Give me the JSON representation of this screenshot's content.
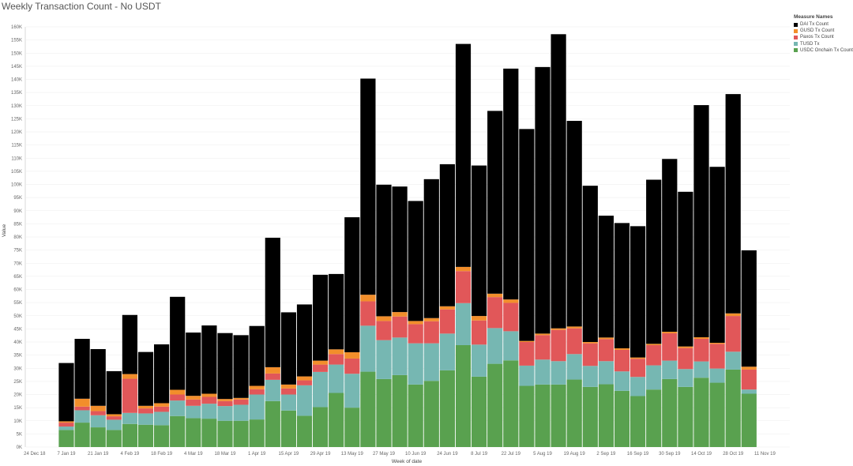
{
  "chart_data": {
    "type": "bar",
    "stacked": true,
    "title": "Weekly Transaction Count - No USDT",
    "xlabel": "Week of date",
    "ylabel": "Value",
    "ylim": [
      0,
      160000
    ],
    "y_ticks": [
      0,
      5000,
      10000,
      15000,
      20000,
      25000,
      30000,
      35000,
      40000,
      45000,
      50000,
      55000,
      60000,
      65000,
      70000,
      75000,
      80000,
      85000,
      90000,
      95000,
      100000,
      105000,
      110000,
      115000,
      120000,
      125000,
      130000,
      135000,
      140000,
      145000,
      150000,
      155000,
      160000
    ],
    "y_tick_labels": [
      "0K",
      "5K",
      "10K",
      "15K",
      "20K",
      "25K",
      "30K",
      "35K",
      "40K",
      "45K",
      "50K",
      "55K",
      "60K",
      "65K",
      "70K",
      "75K",
      "80K",
      "85K",
      "90K",
      "95K",
      "100K",
      "105K",
      "110K",
      "115K",
      "120K",
      "125K",
      "130K",
      "135K",
      "140K",
      "145K",
      "150K",
      "155K",
      "160K"
    ],
    "x_tick_labels": [
      "24 Dec 18",
      "7 Jan 19",
      "21 Jan 19",
      "4 Feb 19",
      "18 Feb 19",
      "4 Mar 19",
      "18 Mar 19",
      "1 Apr 19",
      "15 Apr 19",
      "29 Apr 19",
      "13 May 19",
      "27 May 19",
      "10 Jun 19",
      "24 Jun 19",
      "8 Jul 19",
      "22 Jul 19",
      "5 Aug 19",
      "19 Aug 19",
      "2 Sep 19",
      "16 Sep 19",
      "30 Sep 19",
      "14 Oct 19",
      "28 Oct 19",
      "11 Nov 19"
    ],
    "x_tick_week_index": [
      -2,
      0,
      2,
      4,
      6,
      8,
      10,
      12,
      14,
      16,
      18,
      20,
      22,
      24,
      26,
      28,
      30,
      32,
      34,
      36,
      38,
      40,
      42,
      44
    ],
    "categories": [
      "31 Dec 18",
      "7 Jan 19",
      "14 Jan 19",
      "21 Jan 19",
      "28 Jan 19",
      "4 Feb 19",
      "11 Feb 19",
      "18 Feb 19",
      "25 Feb 19",
      "4 Mar 19",
      "11 Mar 19",
      "18 Mar 19",
      "25 Mar 19",
      "1 Apr 19",
      "8 Apr 19",
      "15 Apr 19",
      "22 Apr 19",
      "29 Apr 19",
      "6 May 19",
      "13 May 19",
      "20 May 19",
      "27 May 19",
      "3 Jun 19",
      "10 Jun 19",
      "17 Jun 19",
      "24 Jun 19",
      "1 Jul 19",
      "8 Jul 19",
      "15 Jul 19",
      "22 Jul 19",
      "29 Jul 19",
      "5 Aug 19",
      "12 Aug 19",
      "19 Aug 19",
      "26 Aug 19",
      "2 Sep 19",
      "9 Sep 19",
      "16 Sep 19",
      "23 Sep 19",
      "30 Sep 19",
      "7 Oct 19",
      "14 Oct 19",
      "21 Oct 19",
      "28 Oct 19"
    ],
    "series": [
      {
        "name": "USDC Onchain Tx Count",
        "color": "#59a14f",
        "values": [
          6500,
          9300,
          7500,
          6500,
          8800,
          8500,
          8300,
          11800,
          11000,
          10800,
          10000,
          10000,
          10500,
          17500,
          13900,
          11900,
          15200,
          20600,
          15000,
          28700,
          25900,
          27400,
          23800,
          25200,
          29200,
          38800,
          26800,
          31700,
          33000,
          23300,
          23800,
          23800,
          25700,
          22900,
          23900,
          21400,
          19400,
          21900,
          25900,
          22900,
          26400,
          24500,
          29500,
          20300
        ]
      },
      {
        "name": "TUSD Tx",
        "color": "#76b7b2",
        "values": [
          1300,
          4700,
          4600,
          3900,
          4200,
          4300,
          5100,
          5900,
          4700,
          5700,
          5600,
          6100,
          9500,
          8100,
          6100,
          11600,
          13400,
          10800,
          12900,
          17500,
          14800,
          14300,
          15700,
          14300,
          14000,
          16000,
          12200,
          13600,
          11100,
          7700,
          9500,
          8900,
          9700,
          8000,
          8800,
          7400,
          7300,
          9200,
          7000,
          6800,
          6200,
          5400,
          6800,
          1600
        ]
      },
      {
        "name": "Paxos Tx Count",
        "color": "#e15759",
        "values": [
          1500,
          1400,
          1600,
          1300,
          13000,
          1900,
          2000,
          2300,
          2400,
          2600,
          1900,
          2000,
          2000,
          2400,
          2300,
          1900,
          2800,
          4000,
          5800,
          9300,
          7300,
          8000,
          7300,
          8400,
          9200,
          12200,
          9200,
          11800,
          10800,
          9000,
          9300,
          11900,
          9800,
          8600,
          8400,
          8200,
          6900,
          7700,
          10400,
          8000,
          8600,
          9400,
          13600,
          7600
        ]
      },
      {
        "name": "GUSD Tx Count",
        "color": "#f28e2b",
        "values": [
          500,
          3000,
          2000,
          800,
          1800,
          1000,
          1300,
          1800,
          1400,
          1200,
          800,
          600,
          1300,
          2400,
          1500,
          1500,
          1500,
          1800,
          2400,
          2500,
          1800,
          1700,
          1200,
          1200,
          1200,
          1600,
          1700,
          1300,
          1300,
          400,
          600,
          600,
          700,
          500,
          600,
          600,
          500,
          500,
          600,
          600,
          600,
          400,
          1000,
          1100
        ]
      },
      {
        "name": "DAI Tx Count",
        "color": "#000000",
        "values": [
          22200,
          22800,
          21600,
          16400,
          22500,
          20500,
          22400,
          35400,
          24100,
          26000,
          25100,
          23900,
          22800,
          49300,
          27500,
          27400,
          32700,
          28700,
          51400,
          82300,
          50100,
          47800,
          45700,
          52900,
          54100,
          84900,
          57300,
          69600,
          87900,
          80700,
          101500,
          112000,
          78300,
          59500,
          46400,
          47700,
          50000,
          62500,
          65800,
          58900,
          88400,
          67000,
          83500,
          44300
        ]
      }
    ],
    "legend_title": "Measure Names",
    "legend": [
      "DAI Tx Count",
      "GUSD Tx Count",
      "Paxos Tx Count",
      "TUSD Tx",
      "USDC Onchain Tx Count"
    ],
    "legend_colors": [
      "#000000",
      "#f28e2b",
      "#e15759",
      "#76b7b2",
      "#59a14f"
    ],
    "legend_position": "top-right",
    "grid": true
  }
}
